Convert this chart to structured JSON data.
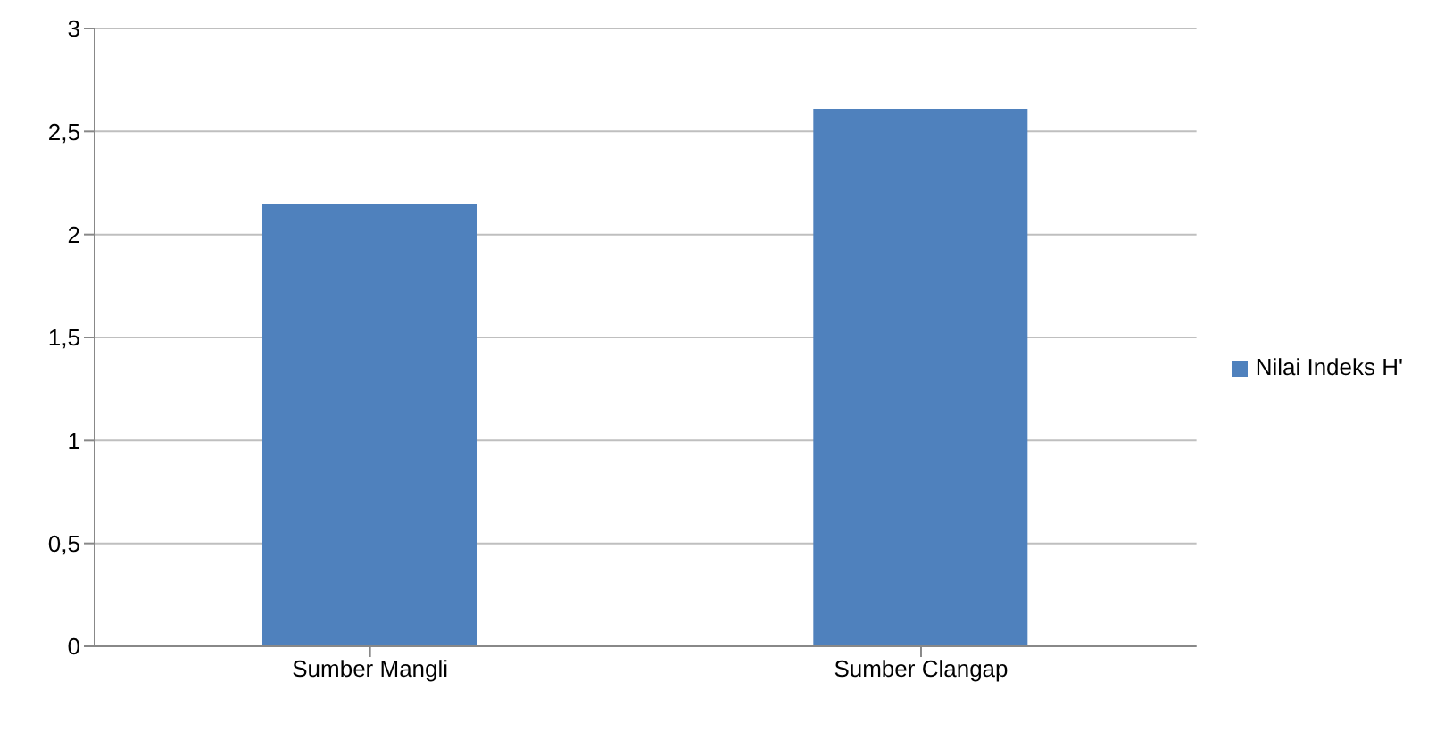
{
  "chart_data": {
    "type": "bar",
    "categories": [
      "Sumber Mangli",
      "Sumber Clangap"
    ],
    "series": [
      {
        "name": "Nilai Indeks H'",
        "color": "#4f81bd",
        "values": [
          2.15,
          2.61
        ]
      }
    ],
    "ylim": [
      0,
      3
    ],
    "yticks": [
      0,
      {
        "value": 0.5,
        "label": "0,5"
      },
      1,
      {
        "value": 1.5,
        "label": "1,5"
      },
      2,
      {
        "value": 2.5,
        "label": "2,5"
      },
      3
    ],
    "grid": "y",
    "legend": "right"
  }
}
